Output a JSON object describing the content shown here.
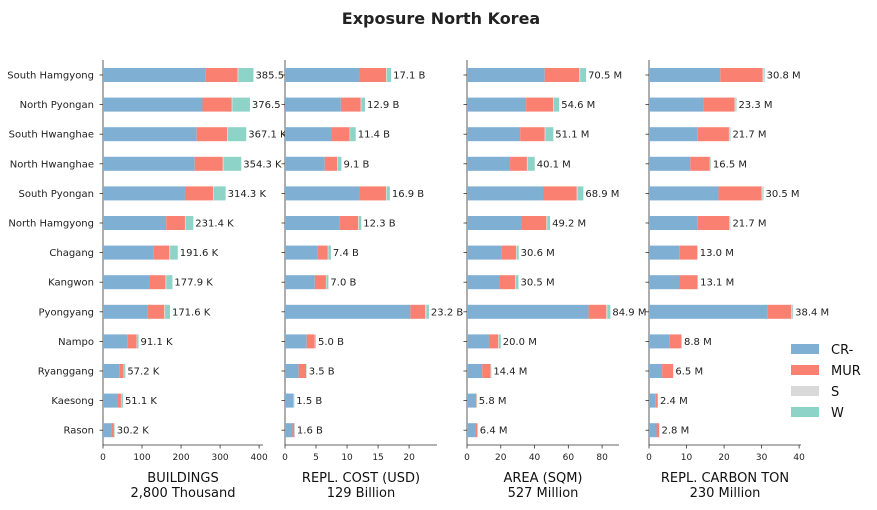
{
  "chart_data": {
    "type": "bar",
    "title": "Exposure North Korea",
    "categories": [
      "South Hamgyong",
      "North Pyongan",
      "South Hwanghae",
      "North Hwanghae",
      "South Pyongan",
      "North Hamgyong",
      "Chagang",
      "Kangwon",
      "Pyongyang",
      "Nampo",
      "Ryanggang",
      "Kaesong",
      "Rason"
    ],
    "legend": {
      "placement": "right",
      "items": [
        {
          "name": "CR-",
          "color": "#7fafd3"
        },
        {
          "name": "MUR",
          "color": "#fa8072"
        },
        {
          "name": "S",
          "color": "#d9d9d9"
        },
        {
          "name": "W",
          "color": "#8ed3c7"
        }
      ]
    },
    "panels": [
      {
        "xlabel": "BUILDINGS",
        "total_label": "2,800 Thousand",
        "xlim": [
          0,
          410
        ],
        "xticks": [
          0,
          100,
          200,
          300,
          400
        ],
        "series": [
          {
            "name": "CR-",
            "values": [
              263,
              255,
              240,
              235,
              210,
              162,
              130,
              118,
              115,
              62,
              43,
              36,
              22
            ]
          },
          {
            "name": "MUR",
            "values": [
              82,
              75,
              78,
              72,
              72,
              48,
              40,
              42,
              42,
              24,
              10,
              10,
              6
            ]
          },
          {
            "name": "S",
            "values": [
              2,
              2,
              2,
              2,
              2,
              2,
              2,
              2,
              2,
              1,
              1,
              1,
              1
            ]
          },
          {
            "name": "W",
            "values": [
              38.5,
              44.5,
              47.1,
              45.3,
              30.3,
              19.4,
              19.6,
              15.9,
              12.6,
              4.1,
              3.2,
              4.1,
              1.2
            ]
          }
        ],
        "totals": [
          "385.5 K",
          "376.5 K",
          "367.1 K",
          "354.3 K",
          "314.3 K",
          "231.4 K",
          "191.6 K",
          "177.9 K",
          "171.6 K",
          "91.1 K",
          "57.2 K",
          "51.1 K",
          "30.2 K"
        ]
      },
      {
        "xlabel": "REPL. COST (USD)",
        "total_label": "129 Billion",
        "xlim": [
          0,
          24.5
        ],
        "xticks": [
          0,
          5,
          10,
          15,
          20
        ],
        "series": [
          {
            "name": "CR-",
            "values": [
              12.0,
              9.0,
              7.5,
              6.4,
              12.0,
              8.8,
              5.3,
              4.8,
              20.2,
              3.5,
              2.2,
              1.3,
              1.2
            ]
          },
          {
            "name": "MUR",
            "values": [
              4.3,
              3.2,
              2.9,
              2.0,
              4.3,
              3.0,
              1.6,
              1.8,
              2.4,
              1.3,
              1.2,
              0.1,
              0.3
            ]
          },
          {
            "name": "S",
            "values": [
              0.1,
              0.1,
              0.1,
              0.1,
              0.1,
              0.1,
              0.1,
              0.1,
              0.2,
              0.1,
              0.05,
              0.05,
              0.05
            ]
          },
          {
            "name": "W",
            "values": [
              0.7,
              0.6,
              0.9,
              0.6,
              0.5,
              0.4,
              0.4,
              0.3,
              0.4,
              0.1,
              0.05,
              0.05,
              0.05
            ]
          }
        ],
        "totals": [
          "17.1 B",
          "12.9 B",
          "11.4 B",
          "9.1 B",
          "16.9 B",
          "12.3 B",
          "7.4 B",
          "7.0 B",
          "23.2 B",
          "5.0 B",
          "3.5 B",
          "1.5 B",
          "1.6 B"
        ]
      },
      {
        "xlabel": "AREA (SQM)",
        "total_label": "527 Million",
        "xlim": [
          0,
          90
        ],
        "xticks": [
          0,
          20,
          40,
          60,
          80
        ],
        "series": [
          {
            "name": "CR-",
            "values": [
              46.0,
              35.0,
              31.5,
              25.5,
              45.0,
              32.0,
              20.5,
              19.5,
              72.0,
              13.0,
              9.0,
              5.0,
              5.0
            ]
          },
          {
            "name": "MUR",
            "values": [
              20.5,
              16.0,
              14.5,
              10.0,
              20.0,
              15.0,
              8.5,
              9.0,
              10.5,
              5.5,
              4.9,
              0.6,
              1.1
            ]
          },
          {
            "name": "S",
            "values": [
              0.5,
              0.5,
              0.5,
              0.5,
              0.5,
              0.5,
              0.5,
              0.5,
              0.7,
              0.3,
              0.2,
              0.1,
              0.1
            ]
          },
          {
            "name": "W",
            "values": [
              3.5,
              3.1,
              4.6,
              4.1,
              3.4,
              1.7,
              1.1,
              1.5,
              1.7,
              1.2,
              0.3,
              0.1,
              0.2
            ]
          }
        ],
        "totals": [
          "70.5 M",
          "54.6 M",
          "51.1 M",
          "40.1 M",
          "68.9 M",
          "49.2 M",
          "30.6 M",
          "30.5 M",
          "84.9 M",
          "20.0 M",
          "14.4 M",
          "5.8 M",
          "6.4 M"
        ]
      },
      {
        "xlabel": "REPL. CARBON TON",
        "total_label": "230 Million",
        "xlim": [
          0,
          40.5
        ],
        "xticks": [
          0,
          10,
          20,
          30,
          40
        ],
        "series": [
          {
            "name": "CR-",
            "values": [
              19.0,
              14.5,
              13.0,
              11.0,
              18.5,
              13.0,
              8.2,
              8.0,
              31.5,
              5.5,
              3.5,
              1.8,
              2.0
            ]
          },
          {
            "name": "MUR",
            "values": [
              11.3,
              8.3,
              8.3,
              5.2,
              11.5,
              8.4,
              4.6,
              4.9,
              6.4,
              3.1,
              2.9,
              0.5,
              0.7
            ]
          },
          {
            "name": "S",
            "values": [
              0.3,
              0.3,
              0.2,
              0.2,
              0.3,
              0.2,
              0.1,
              0.1,
              0.3,
              0.1,
              0.05,
              0.05,
              0.05
            ]
          },
          {
            "name": "W",
            "values": [
              0.2,
              0.2,
              0.2,
              0.1,
              0.2,
              0.1,
              0.1,
              0.1,
              0.2,
              0.1,
              0.05,
              0.05,
              0.05
            ]
          }
        ],
        "totals": [
          "30.8 M",
          "23.3 M",
          "21.7 M",
          "16.5 M",
          "30.5 M",
          "21.7 M",
          "13.0 M",
          "13.1 M",
          "38.4 M",
          "8.8 M",
          "6.5 M",
          "2.4 M",
          "2.8 M"
        ]
      }
    ]
  }
}
